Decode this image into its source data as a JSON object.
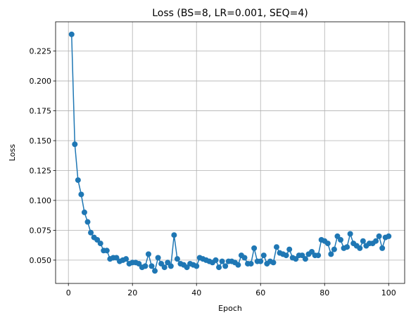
{
  "chart_data": {
    "type": "line",
    "title": "Loss (BS=8, LR=0.001, SEQ=4)",
    "xlabel": "Epoch",
    "ylabel": "Loss",
    "xlim": [
      -4,
      105
    ],
    "ylim": [
      0.0305,
      0.2495
    ],
    "xticks": [
      0,
      20,
      40,
      60,
      80,
      100
    ],
    "xtick_labels": [
      "0",
      "20",
      "40",
      "60",
      "80",
      "100"
    ],
    "yticks": [
      0.05,
      0.075,
      0.1,
      0.125,
      0.15,
      0.175,
      0.2,
      0.225
    ],
    "ytick_labels": [
      "0.050",
      "0.075",
      "0.100",
      "0.125",
      "0.150",
      "0.175",
      "0.200",
      "0.225"
    ],
    "grid": true,
    "color": "#1f77b4",
    "markers": true,
    "series": [
      {
        "x": [
          1,
          2,
          3,
          4,
          5,
          6,
          7,
          8,
          9,
          10,
          11,
          12,
          13,
          14,
          15,
          16,
          17,
          18,
          19,
          20,
          21,
          22,
          23,
          24,
          25,
          26,
          27,
          28,
          29,
          30,
          31,
          32,
          33,
          34,
          35,
          36,
          37,
          38,
          39,
          40,
          41,
          42,
          43,
          44,
          45,
          46,
          47,
          48,
          49,
          50,
          51,
          52,
          53,
          54,
          55,
          56,
          57,
          58,
          59,
          60,
          61,
          62,
          63,
          64,
          65,
          66,
          67,
          68,
          69,
          70,
          71,
          72,
          73,
          74,
          75,
          76,
          77,
          78,
          79,
          80,
          81,
          82,
          83,
          84,
          85,
          86,
          87,
          88,
          89,
          90,
          91,
          92,
          93,
          94,
          95,
          96,
          97,
          98,
          99,
          100
        ],
        "y": [
          0.239,
          0.147,
          0.117,
          0.105,
          0.09,
          0.082,
          0.073,
          0.069,
          0.067,
          0.064,
          0.058,
          0.058,
          0.051,
          0.052,
          0.052,
          0.049,
          0.05,
          0.051,
          0.047,
          0.048,
          0.048,
          0.047,
          0.044,
          0.045,
          0.055,
          0.045,
          0.041,
          0.052,
          0.047,
          0.044,
          0.048,
          0.045,
          0.071,
          0.051,
          0.047,
          0.046,
          0.044,
          0.047,
          0.046,
          0.045,
          0.052,
          0.051,
          0.05,
          0.049,
          0.048,
          0.05,
          0.044,
          0.049,
          0.045,
          0.049,
          0.049,
          0.048,
          0.046,
          0.054,
          0.052,
          0.047,
          0.047,
          0.06,
          0.049,
          0.049,
          0.054,
          0.047,
          0.049,
          0.048,
          0.061,
          0.056,
          0.055,
          0.054,
          0.059,
          0.052,
          0.051,
          0.054,
          0.054,
          0.051,
          0.055,
          0.057,
          0.054,
          0.054,
          0.067,
          0.066,
          0.064,
          0.055,
          0.059,
          0.07,
          0.067,
          0.06,
          0.061,
          0.072,
          0.064,
          0.062,
          0.06,
          0.066,
          0.062,
          0.064,
          0.064,
          0.066,
          0.07,
          0.06,
          0.069,
          0.07
        ]
      }
    ]
  }
}
